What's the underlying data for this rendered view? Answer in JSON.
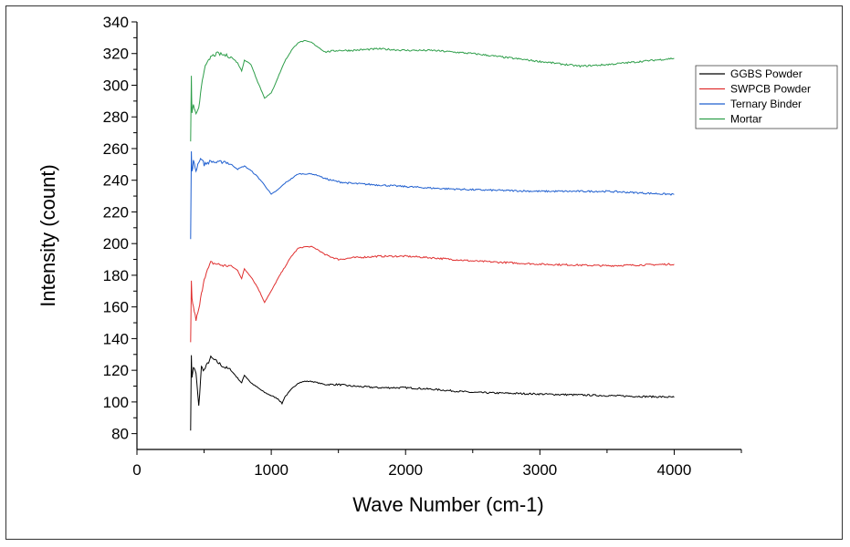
{
  "chart_data": {
    "type": "line",
    "title": "",
    "xlabel": "Wave Number (cm-1)",
    "ylabel": "Intensity (count)",
    "xlim": [
      0,
      4500
    ],
    "ylim": [
      70,
      340
    ],
    "x_ticks": [
      0,
      1000,
      2000,
      3000,
      4000
    ],
    "y_ticks": [
      80,
      100,
      120,
      140,
      160,
      180,
      200,
      220,
      240,
      260,
      280,
      300,
      320,
      340
    ],
    "grid": false,
    "legend_position": "top-right",
    "series": [
      {
        "name": "GGBS Powder",
        "color": "#000000",
        "x": [
          400,
          405,
          410,
          420,
          440,
          460,
          480,
          500,
          550,
          600,
          650,
          700,
          750,
          780,
          800,
          850,
          900,
          950,
          1000,
          1050,
          1080,
          1100,
          1150,
          1200,
          1250,
          1300,
          1350,
          1400,
          1500,
          1600,
          1800,
          2000,
          2200,
          2500,
          3000,
          3500,
          4000
        ],
        "y": [
          83,
          130,
          115,
          122,
          118,
          97,
          122,
          120,
          128,
          125,
          122,
          120,
          115,
          112,
          117,
          112,
          109,
          106,
          104,
          102,
          99,
          103,
          108,
          112,
          113,
          113,
          112,
          111,
          111,
          110,
          109,
          109,
          108,
          106,
          105,
          104,
          103
        ]
      },
      {
        "name": "SWPCB Powder",
        "color": "#e03030",
        "x": [
          400,
          405,
          410,
          420,
          440,
          460,
          480,
          500,
          550,
          600,
          650,
          700,
          750,
          780,
          800,
          850,
          900,
          950,
          1000,
          1050,
          1100,
          1150,
          1200,
          1250,
          1300,
          1350,
          1400,
          1500,
          1600,
          1800,
          2000,
          2200,
          2500,
          3000,
          3500,
          4000
        ],
        "y": [
          137,
          176,
          165,
          160,
          152,
          158,
          168,
          178,
          188,
          187,
          186,
          186,
          183,
          178,
          184,
          179,
          172,
          163,
          170,
          178,
          185,
          192,
          197,
          198,
          198,
          196,
          193,
          190,
          191,
          192,
          192,
          191,
          189,
          187,
          186,
          187
        ]
      },
      {
        "name": "Ternary Binder",
        "color": "#1f5fcf",
        "x": [
          400,
          405,
          410,
          420,
          440,
          460,
          480,
          500,
          550,
          600,
          650,
          700,
          750,
          800,
          850,
          900,
          950,
          1000,
          1050,
          1100,
          1150,
          1200,
          1250,
          1300,
          1350,
          1400,
          1500,
          1600,
          1800,
          2000,
          2200,
          2500,
          3000,
          3500,
          4000
        ],
        "y": [
          203,
          258,
          245,
          252,
          246,
          252,
          254,
          250,
          252,
          251,
          252,
          250,
          247,
          249,
          246,
          242,
          237,
          231,
          234,
          238,
          241,
          244,
          244,
          244,
          243,
          241,
          239,
          238,
          237,
          236,
          235,
          234,
          233,
          233,
          231
        ]
      },
      {
        "name": "Mortar",
        "color": "#2e9e4a",
        "x": [
          400,
          405,
          410,
          420,
          440,
          460,
          480,
          500,
          550,
          600,
          650,
          700,
          750,
          780,
          800,
          850,
          900,
          950,
          1000,
          1050,
          1100,
          1150,
          1200,
          1250,
          1300,
          1350,
          1400,
          1500,
          1600,
          1800,
          2000,
          2200,
          2500,
          3000,
          3300,
          3500,
          4000
        ],
        "y": [
          265,
          305,
          282,
          288,
          281,
          285,
          300,
          310,
          318,
          320,
          319,
          318,
          314,
          309,
          316,
          313,
          302,
          292,
          295,
          305,
          315,
          322,
          327,
          328,
          327,
          324,
          321,
          322,
          322,
          323,
          322,
          322,
          320,
          315,
          312,
          313,
          317
        ]
      }
    ]
  }
}
